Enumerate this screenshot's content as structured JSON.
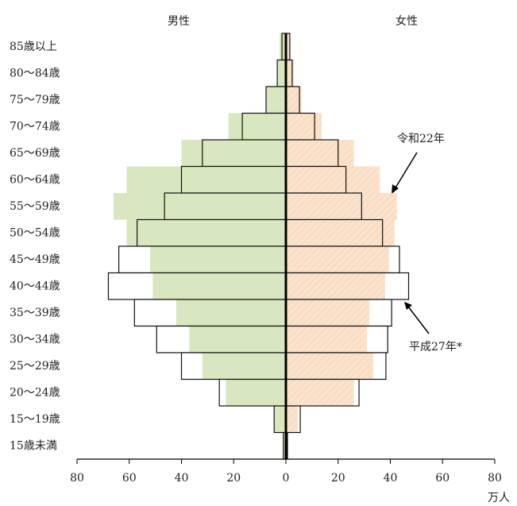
{
  "chart_data": {
    "type": "pyramid",
    "left_label": "男性",
    "right_label": "女性",
    "categories": [
      "85歳以上",
      "80～84歳",
      "75～79歳",
      "70～74歳",
      "65～69歳",
      "60～64歳",
      "55～59歳",
      "50～54歳",
      "45～49歳",
      "40～44歳",
      "35～39歳",
      "30～34歳",
      "25～29歳",
      "20～24歳",
      "15～19歳",
      "15歳未満"
    ],
    "series": [
      {
        "name": "令和22年",
        "male_color": "#d8e7bf",
        "female_color": "#fbe2cb",
        "male": [
          2.4,
          3,
          7.6,
          22,
          40,
          61,
          66,
          61,
          52,
          51,
          42,
          37,
          32,
          23,
          4.5,
          1
        ],
        "female": [
          1.5,
          3,
          6,
          13.7,
          26,
          36,
          42.5,
          41.6,
          39.5,
          38,
          32,
          31,
          33.4,
          26,
          4.5,
          0.6
        ]
      },
      {
        "name": "平成27年*",
        "male_color": "#ffffff",
        "female_color": "#ffffff",
        "male": [
          1.5,
          3.3,
          7.6,
          16.7,
          32,
          40,
          46.5,
          57,
          64,
          68,
          58,
          49.5,
          40,
          25.5,
          4.5,
          1
        ],
        "female": [
          1.5,
          2.4,
          5.2,
          11,
          20,
          23,
          29,
          37,
          43.5,
          47,
          40.5,
          39,
          38.3,
          28,
          5.5,
          0.6
        ]
      }
    ],
    "xlim": [
      0,
      80
    ],
    "xticks": [
      0,
      20,
      40,
      60,
      80
    ],
    "x_unit": "万人"
  }
}
